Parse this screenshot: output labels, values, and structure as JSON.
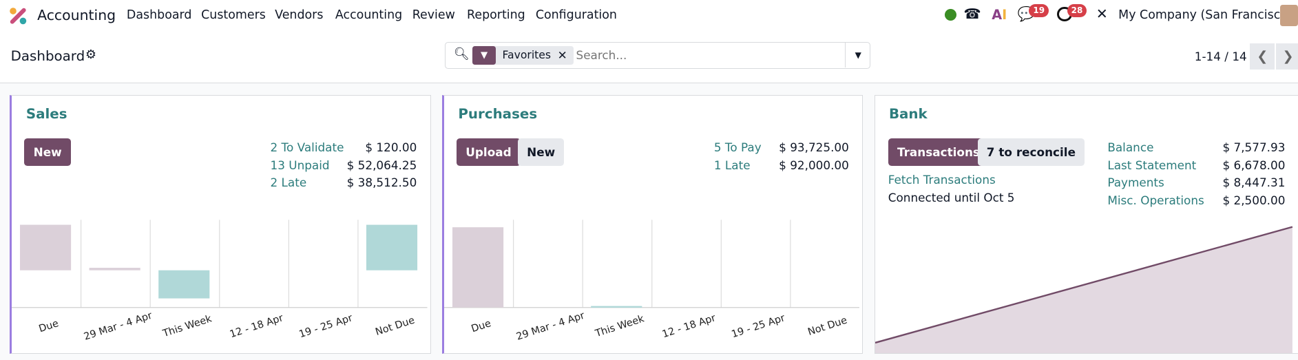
{
  "navbar": {
    "app_name": "Accounting",
    "menu": [
      "Dashboard",
      "Customers",
      "Vendors",
      "Accounting",
      "Review",
      "Reporting",
      "Configuration"
    ],
    "chat_badge": "19",
    "activity_badge": "28",
    "company": "My Company (San Francisco)",
    "status_color": "#3a8d24"
  },
  "control_panel": {
    "title": "Dashboard",
    "facet_label": "Favorites",
    "search_placeholder": "Search...",
    "pager": "1-14 / 14"
  },
  "colors": {
    "brand": "#714b67",
    "link": "#2c7c7c",
    "past_bar": "#dbd0d9",
    "future_bar": "#b0d8d8",
    "card_accent": "#9b7de0"
  },
  "sales": {
    "title": "Sales",
    "new_label": "New",
    "stats": [
      {
        "label": "2 To Validate",
        "amount": "$ 120.00"
      },
      {
        "label": "13 Unpaid",
        "amount": "$ 52,064.25"
      },
      {
        "label": "2 Late",
        "amount": "$ 38,512.50"
      }
    ]
  },
  "purchases": {
    "title": "Purchases",
    "upload_label": "Upload",
    "new_label": "New",
    "stats": [
      {
        "label": "5 To Pay",
        "amount": "$ 93,725.00"
      },
      {
        "label": "1 Late",
        "amount": "$ 92,000.00"
      }
    ]
  },
  "bank": {
    "title": "Bank",
    "transactions_label": "Transactions",
    "reconcile_label": "7 to reconcile",
    "fetch_label": "Fetch Transactions",
    "connected_label": "Connected until Oct 5",
    "stats": [
      {
        "label": "Balance",
        "amount": "$ 7,577.93"
      },
      {
        "label": "Last Statement",
        "amount": "$ 6,678.00"
      },
      {
        "label": "Payments",
        "amount": "$ 8,447.31"
      },
      {
        "label": "Misc. Operations",
        "amount": "$ 2,500.00"
      }
    ]
  },
  "chart_data": [
    {
      "type": "bar",
      "name_hint": "sales",
      "categories": [
        "Due",
        "29 Mar - 4 Apr",
        "This Week",
        "12 - 18 Apr",
        "19 - 25 Apr",
        "Not Due"
      ],
      "values": [
        38512.5,
        2100,
        -23800,
        0,
        0,
        38500
      ],
      "colors": [
        "#dbd0d9",
        "#dbd0d9",
        "#b0d8d8",
        "#b0d8d8",
        "#b0d8d8",
        "#b0d8d8"
      ]
    },
    {
      "type": "bar",
      "name_hint": "purchases",
      "categories": [
        "Due",
        "29 Mar - 4 Apr",
        "This Week",
        "12 - 18 Apr",
        "19 - 25 Apr",
        "Not Due"
      ],
      "values": [
        92000,
        0,
        1725,
        0,
        0,
        0
      ],
      "colors": [
        "#dbd0d9",
        "#dbd0d9",
        "#b0d8d8",
        "#b0d8d8",
        "#b0d8d8",
        "#b0d8d8"
      ]
    },
    {
      "type": "area",
      "name_hint": "bank",
      "trend": "rising",
      "line_color": "#714b67",
      "fill_color": "#e3d9e1"
    }
  ]
}
